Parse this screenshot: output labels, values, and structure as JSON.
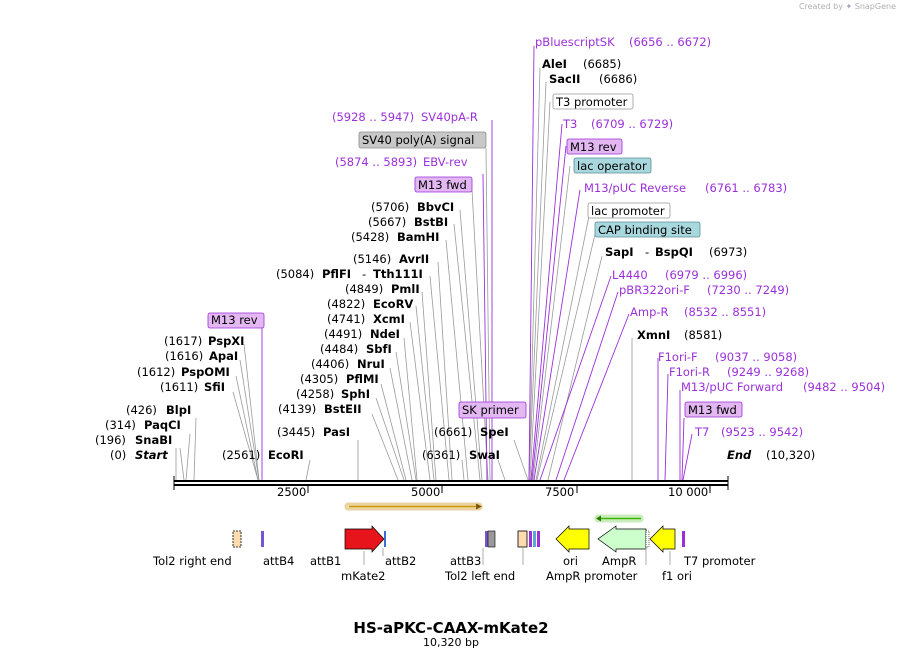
{
  "credit": {
    "text": "Created by",
    "brand": "SnapGene"
  },
  "plasmid": {
    "name": "HS-aPKC-CAAX-mKate2",
    "length": "10,320 bp",
    "length_bp": 10320
  },
  "ends": {
    "start": "Start",
    "start_pos": "(0)",
    "end": "End",
    "end_pos": "(10,320)"
  },
  "ruler": {
    "ticks": [
      "2500",
      "5000",
      "7500",
      "10 000"
    ]
  },
  "sites": {
    "snabi": {
      "pos": "(196)",
      "name": "SnaBI"
    },
    "paqci": {
      "pos": "(314)",
      "name": "PaqCI"
    },
    "blpi": {
      "pos": "(426)",
      "name": "BlpI"
    },
    "sfii": {
      "pos": "(1611)",
      "name": "SfiI"
    },
    "pspomi": {
      "pos": "(1612)",
      "name": "PspOMI"
    },
    "apai": {
      "pos": "(1616)",
      "name": "ApaI"
    },
    "pspxi": {
      "pos": "(1617)",
      "name": "PspXI"
    },
    "ecori": {
      "pos": "(2561)",
      "name": "EcoRI"
    },
    "pasi": {
      "pos": "(3445)",
      "name": "PasI"
    },
    "bsteii": {
      "pos": "(4139)",
      "name": "BstEII"
    },
    "sphi": {
      "pos": "(4258)",
      "name": "SphI"
    },
    "pflmi": {
      "pos": "(4305)",
      "name": "PflMI"
    },
    "nrui": {
      "pos": "(4406)",
      "name": "NruI"
    },
    "sbfi": {
      "pos": "(4484)",
      "name": "SbfI"
    },
    "ndei": {
      "pos": "(4491)",
      "name": "NdeI"
    },
    "xcmi": {
      "pos": "(4741)",
      "name": "XcmI"
    },
    "ecorv": {
      "pos": "(4822)",
      "name": "EcoRV"
    },
    "pmli": {
      "pos": "(4849)",
      "name": "PmlI"
    },
    "pflfi": {
      "pos": "(5084)",
      "name": "PflFI",
      "alt": "Tth111I"
    },
    "avrii": {
      "pos": "(5146)",
      "name": "AvrII"
    },
    "bamhi": {
      "pos": "(5428)",
      "name": "BamHI"
    },
    "bstbi": {
      "pos": "(5667)",
      "name": "BstBI"
    },
    "bbvci": {
      "pos": "(5706)",
      "name": "BbvCI"
    },
    "swai": {
      "pos": "(6361)",
      "name": "SwaI"
    },
    "spei": {
      "pos": "(6661)",
      "name": "SpeI"
    },
    "alei": {
      "name": "AleI",
      "pos": "(6685)"
    },
    "sacii": {
      "name": "SacII",
      "pos": "(6686)"
    },
    "sapi": {
      "name": "SapI",
      "alt": "BspQI",
      "pos": "(6973)"
    },
    "xmni": {
      "name": "XmnI",
      "pos": "(8581)"
    }
  },
  "primers": {
    "sv40pa_r": {
      "name": "SV40pA-R",
      "range": "(5928 .. 5947)"
    },
    "ebv_rev": {
      "name": "EBV-rev",
      "range": "(5874 .. 5893)"
    },
    "pbluescriptsk": {
      "name": "pBluescriptSK",
      "range": "(6656 .. 6672)"
    },
    "t3": {
      "name": "T3",
      "range": "(6709 .. 6729)"
    },
    "m13puc_rev": {
      "name": "M13/pUC Reverse",
      "range": "(6761 .. 6783)"
    },
    "l4440": {
      "name": "L4440",
      "range": "(6979 .. 6996)"
    },
    "pbr322ori_f": {
      "name": "pBR322ori-F",
      "range": "(7230 .. 7249)"
    },
    "amp_r": {
      "name": "Amp-R",
      "range": "(8532 .. 8551)"
    },
    "f1ori_f": {
      "name": "F1ori-F",
      "range": "(9037 .. 9058)"
    },
    "f1ori_r": {
      "name": "F1ori-R",
      "range": "(9249 .. 9268)"
    },
    "m13puc_fwd": {
      "name": "M13/pUC Forward",
      "range": "(9482 .. 9504)"
    },
    "t7": {
      "name": "T7",
      "range": "(9523 .. 9542)"
    }
  },
  "boxes": {
    "m13rev_left": "M13 rev",
    "sv40_signal": "SV40 poly(A) signal",
    "m13fwd_top": "M13 fwd",
    "sk_primer": "SK primer",
    "t3_promoter": "T3 promoter",
    "m13rev_right": "M13 rev",
    "lac_operator": "lac operator",
    "lac_promoter": "lac promoter",
    "cap_site": "CAP binding site",
    "m13fwd_right": "M13 fwd"
  },
  "features": {
    "tol2_right": "Tol2 right end",
    "attb4": "attB4",
    "attb1": "attB1",
    "attb2": "attB2",
    "mkate2": "mKate2",
    "attb3": "attB3",
    "tol2_left": "Tol2 left end",
    "ori": "ori",
    "ampr_promoter": "AmpR promoter",
    "ampr": "AmpR",
    "f1_ori": "f1 ori",
    "t7_promoter": "T7 promoter"
  },
  "colors": {
    "primer": "#9b30d9",
    "mkate2": "#e8141b",
    "ori": "#ffff00",
    "ampr": "#ccffcc",
    "tol2": "#ffdcb0",
    "attb": "#7755cc",
    "orf_bar": "#c8960a",
    "orf_bar_green": "#3cb300"
  }
}
